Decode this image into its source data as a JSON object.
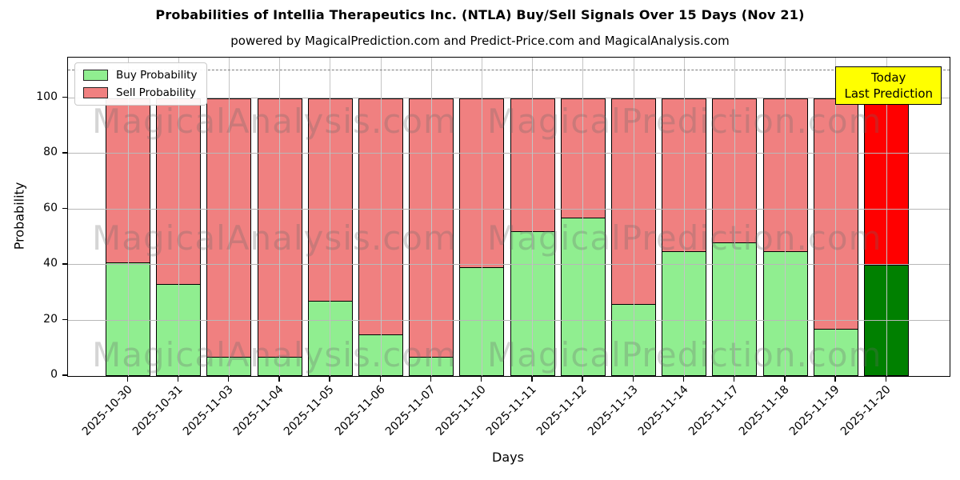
{
  "title": "Probabilities of Intellia Therapeutics Inc. (NTLA) Buy/Sell Signals Over 15 Days (Nov 21)",
  "subtitle": "powered by MagicalPrediction.com and Predict-Price.com and MagicalAnalysis.com",
  "legend": {
    "buy_label": "Buy Probability",
    "sell_label": "Sell Probability"
  },
  "annotation": {
    "line1": "Today",
    "line2": "Last Prediction"
  },
  "axes": {
    "ylabel": "Probability",
    "xlabel": "Days",
    "yticks": [
      0,
      20,
      40,
      60,
      80,
      100
    ]
  },
  "watermarks": [
    "MagicalAnalysis.com",
    "MagicalPrediction.com"
  ],
  "colors": {
    "buy": "#90ee90",
    "sell": "#f08080",
    "today_buy": "#008000",
    "today_sell": "#ff0000",
    "annotation_bg": "#ffff00",
    "grid": "#bcbcbc",
    "bar_edge": "#000000"
  },
  "chart_data": {
    "type": "bar",
    "stacked": true,
    "title": "Probabilities of Intellia Therapeutics Inc. (NTLA) Buy/Sell Signals Over 15 Days (Nov 21)",
    "xlabel": "Days",
    "ylabel": "Probability",
    "ylim": [
      0,
      115
    ],
    "grid": true,
    "legend_position": "upper left",
    "dashed_line_y": 110,
    "categories": [
      "2025-10-30",
      "2025-10-31",
      "2025-11-03",
      "2025-11-04",
      "2025-11-05",
      "2025-11-06",
      "2025-11-07",
      "2025-11-10",
      "2025-11-11",
      "2025-11-12",
      "2025-11-13",
      "2025-11-14",
      "2025-11-17",
      "2025-11-18",
      "2025-11-19",
      "2025-11-20"
    ],
    "series": [
      {
        "name": "Buy Probability",
        "values": [
          41,
          33,
          7,
          7,
          27,
          15,
          7,
          39,
          52,
          57,
          26,
          45,
          48,
          45,
          17,
          40
        ]
      },
      {
        "name": "Sell Probability",
        "values": [
          59,
          67,
          93,
          93,
          73,
          85,
          93,
          61,
          48,
          43,
          74,
          55,
          52,
          55,
          83,
          60
        ]
      }
    ],
    "today_index": 15
  }
}
